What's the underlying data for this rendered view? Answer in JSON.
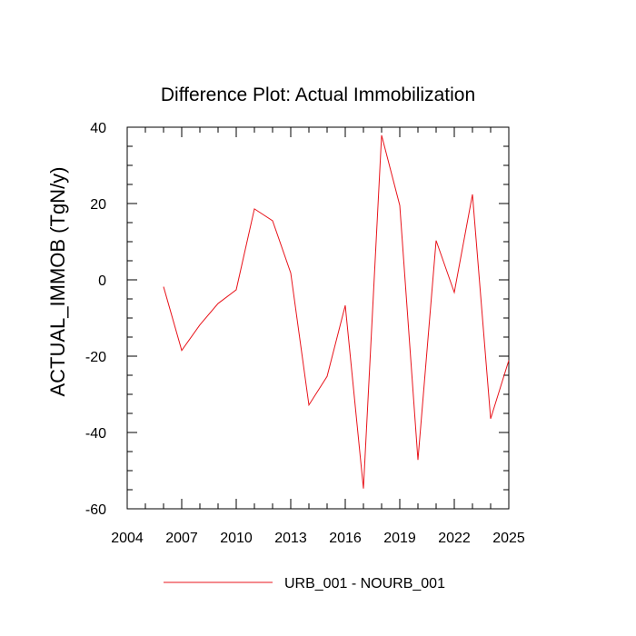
{
  "chart_data": {
    "type": "line",
    "title": "Difference Plot: Actual Immobilization",
    "xlabel": "",
    "ylabel": "ACTUAL_IMMOB  (TgN/y)",
    "xlim": [
      2004,
      2025
    ],
    "ylim": [
      -60,
      40
    ],
    "xticks": [
      2004,
      2007,
      2010,
      2013,
      2016,
      2019,
      2022,
      2025
    ],
    "xtick_labels": [
      "2004",
      "2007",
      "2010",
      "2013",
      "2016",
      "2019",
      "2022",
      "2025"
    ],
    "yticks": [
      -60,
      -40,
      -20,
      0,
      20,
      40
    ],
    "ytick_labels": [
      "-60",
      "-40",
      "-20",
      "0",
      "20",
      "40"
    ],
    "grid": false,
    "legend_position": "bottom-center",
    "series": [
      {
        "name": "URB_001 - NOURB_001",
        "color": "#e8141b",
        "x": [
          2006,
          2007,
          2008,
          2009,
          2010,
          2011,
          2012,
          2013,
          2014,
          2015,
          2016,
          2017,
          2018,
          2019,
          2020,
          2021,
          2022,
          2023,
          2024,
          2025
        ],
        "values": [
          -1.8,
          -18.5,
          -11.8,
          -6.2,
          -2.6,
          18.6,
          15.5,
          1.8,
          -32.8,
          -25.3,
          -6.7,
          -54.7,
          37.9,
          19.5,
          -47.2,
          10.3,
          -3.3,
          22.4,
          -36.4,
          -21.1
        ]
      }
    ]
  }
}
